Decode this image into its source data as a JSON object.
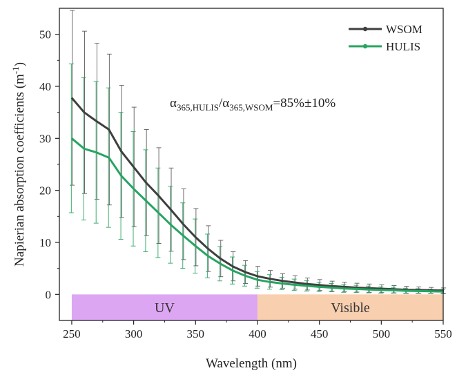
{
  "chart_data": {
    "type": "line",
    "xlabel": "Wavelength (nm)",
    "ylabel_main": "Napierian absorption coefficients (m",
    "ylabel_sup": "-1",
    "ylabel_close": ")",
    "xlim": [
      240,
      550
    ],
    "ylim": [
      -5,
      55
    ],
    "xticks": [
      250,
      300,
      350,
      400,
      450,
      500,
      550
    ],
    "yticks": [
      0,
      10,
      20,
      30,
      40,
      50
    ],
    "grid": false,
    "legend_position": "top-right",
    "annotation": {
      "alpha": "α",
      "sub1": "365,HULIS",
      "slash": "/",
      "sub2": "365,WSOM",
      "value": "=85%±10%"
    },
    "regions": [
      {
        "label": "UV",
        "x": [
          250,
          400
        ],
        "y": [
          -5,
          0
        ],
        "color": "#dda6f3"
      },
      {
        "label": "Visible",
        "x": [
          400,
          550
        ],
        "y": [
          -5,
          0
        ],
        "color": "#f8cfaf"
      }
    ],
    "x": [
      250,
      260,
      270,
      280,
      290,
      300,
      310,
      320,
      330,
      340,
      350,
      360,
      370,
      380,
      390,
      400,
      410,
      420,
      430,
      440,
      450,
      460,
      470,
      480,
      490,
      500,
      510,
      520,
      530,
      540,
      550
    ],
    "series": [
      {
        "name": "WSOM",
        "color": "#3f3f3f",
        "values": [
          37.8,
          35.0,
          33.3,
          31.7,
          27.5,
          24.5,
          21.5,
          19.0,
          16.3,
          13.5,
          11.0,
          8.8,
          6.9,
          5.4,
          4.3,
          3.5,
          3.0,
          2.6,
          2.3,
          2.0,
          1.8,
          1.6,
          1.45,
          1.3,
          1.2,
          1.1,
          1.0,
          0.9,
          0.85,
          0.8,
          0.75
        ],
        "errors": [
          16.8,
          15.6,
          15.0,
          14.5,
          12.7,
          11.5,
          10.2,
          9.2,
          8.0,
          6.8,
          5.5,
          4.4,
          3.5,
          2.8,
          2.2,
          1.9,
          1.6,
          1.4,
          1.3,
          1.15,
          1.05,
          0.95,
          0.9,
          0.85,
          0.8,
          0.75,
          0.7,
          0.65,
          0.6,
          0.55,
          0.5
        ]
      },
      {
        "name": "HULIS",
        "color": "#27a462",
        "values": [
          30.0,
          28.0,
          27.3,
          26.3,
          22.8,
          20.3,
          18.0,
          15.7,
          13.4,
          11.3,
          9.3,
          7.4,
          5.9,
          4.6,
          3.6,
          2.8,
          2.4,
          2.1,
          1.85,
          1.65,
          1.45,
          1.3,
          1.15,
          1.05,
          0.95,
          0.85,
          0.8,
          0.7,
          0.65,
          0.6,
          0.55
        ],
        "errors": [
          14.3,
          13.7,
          13.6,
          13.4,
          12.2,
          11.0,
          9.8,
          8.6,
          7.4,
          6.3,
          5.2,
          4.2,
          3.3,
          2.6,
          2.0,
          1.6,
          1.4,
          1.2,
          1.1,
          1.0,
          0.9,
          0.8,
          0.75,
          0.7,
          0.65,
          0.6,
          0.55,
          0.5,
          0.45,
          0.4,
          0.4
        ]
      }
    ]
  }
}
